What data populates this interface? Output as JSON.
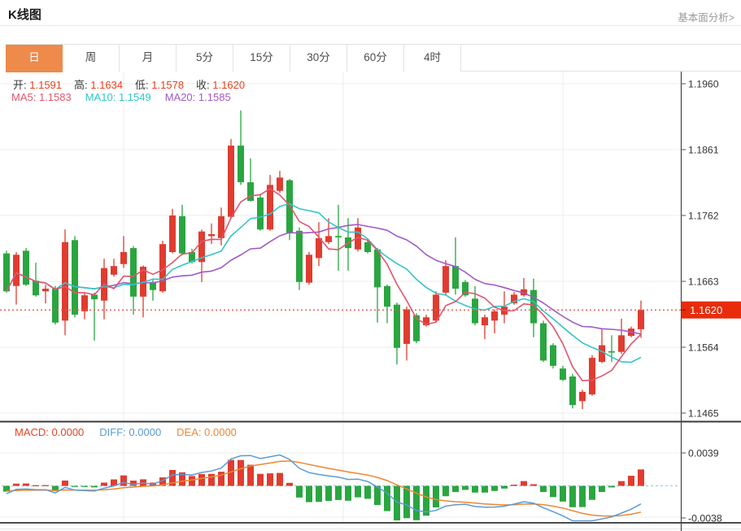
{
  "page": {
    "title": "K线图",
    "link": "基本面分析>"
  },
  "tabs": {
    "items": [
      {
        "label": "日",
        "active": true
      },
      {
        "label": "周",
        "active": false
      },
      {
        "label": "月",
        "active": false
      },
      {
        "label": "5分",
        "active": false
      },
      {
        "label": "15分",
        "active": false
      },
      {
        "label": "30分",
        "active": false
      },
      {
        "label": "60分",
        "active": false
      },
      {
        "label": "4时",
        "active": false
      }
    ]
  },
  "legend": {
    "ohlc": [
      {
        "label": "开:",
        "value": "1.1591"
      },
      {
        "label": "高:",
        "value": "1.1634"
      },
      {
        "label": "低:",
        "value": "1.1578"
      },
      {
        "label": "收:",
        "value": "1.1620"
      }
    ],
    "ma": [
      {
        "label": "MA5:",
        "value": "1.1583"
      },
      {
        "label": "MA10:",
        "value": "1.1549"
      },
      {
        "label": "MA20:",
        "value": "1.1585"
      }
    ]
  },
  "macd_header": [
    {
      "label": "MACD:",
      "value": "0.0000"
    },
    {
      "label": "DIFF:",
      "value": "0.0000"
    },
    {
      "label": "DEA:",
      "value": "0.0000"
    }
  ],
  "chart_data": {
    "type": "candlestick+macd",
    "price_axis": {
      "max": 1.196,
      "min": 1.1465,
      "ticks": [
        "1.1960",
        "1.1861",
        "1.1762",
        "1.1663",
        "1.1564",
        "1.1465"
      ]
    },
    "price_line": {
      "value": "1.1620",
      "price": 1.162
    },
    "macd_axis": {
      "max": 0.0039,
      "min": -0.0038,
      "ticks": [
        "0.0039",
        "-0.0038"
      ]
    },
    "ma_periods": [
      5,
      10,
      20
    ],
    "colors": {
      "up": "#e03c30",
      "down": "#2aa640",
      "ma5": "#e0556e",
      "ma10": "#33c4c8",
      "ma20": "#a259c4",
      "diff": "#5b9bd5",
      "dea": "#ee8633",
      "price_line": "#ee5540",
      "price_badge": "#e82c0c",
      "accent_tab": "#ee8a4a",
      "axis_text": "#333333",
      "grid": "#ececec"
    },
    "candles": [
      [
        1.1705,
        1.1709,
        1.1646,
        1.1648
      ],
      [
        1.1656,
        1.1707,
        1.1628,
        1.1703
      ],
      [
        1.1709,
        1.1713,
        1.1656,
        1.1658
      ],
      [
        1.1664,
        1.1691,
        1.164,
        1.1642
      ],
      [
        1.1648,
        1.1658,
        1.163,
        1.1652
      ],
      [
        1.1652,
        1.1656,
        1.1598,
        1.1601
      ],
      [
        1.1604,
        1.1741,
        1.1582,
        1.1722
      ],
      [
        1.1725,
        1.1731,
        1.1609,
        1.1613
      ],
      [
        1.1618,
        1.1646,
        1.1606,
        1.1642
      ],
      [
        1.1643,
        1.1646,
        1.1574,
        1.1636
      ],
      [
        1.1634,
        1.1697,
        1.1606,
        1.1683
      ],
      [
        1.1673,
        1.1697,
        1.167,
        1.1686
      ],
      [
        1.1689,
        1.1731,
        1.1683,
        1.1707
      ],
      [
        1.1713,
        1.1716,
        1.1613,
        1.164
      ],
      [
        1.164,
        1.1687,
        1.1609,
        1.1685
      ],
      [
        1.1662,
        1.1665,
        1.1634,
        1.165
      ],
      [
        1.1648,
        1.1724,
        1.1646,
        1.1719
      ],
      [
        1.1707,
        1.1772,
        1.1705,
        1.1762
      ],
      [
        1.1761,
        1.1778,
        1.1702,
        1.1705
      ],
      [
        1.1707,
        1.1712,
        1.169,
        1.1692
      ],
      [
        1.1692,
        1.1741,
        1.1662,
        1.1738
      ],
      [
        1.1731,
        1.175,
        1.1719,
        1.1734
      ],
      [
        1.1728,
        1.1774,
        1.1717,
        1.1761
      ],
      [
        1.176,
        1.1877,
        1.1757,
        1.1867
      ],
      [
        1.1867,
        1.192,
        1.1808,
        1.1812
      ],
      [
        1.1812,
        1.1848,
        1.1783,
        1.1784
      ],
      [
        1.1789,
        1.1793,
        1.1739,
        1.1741
      ],
      [
        1.1741,
        1.1823,
        1.1739,
        1.1808
      ],
      [
        1.1799,
        1.1829,
        1.1796,
        1.1819
      ],
      [
        1.1815,
        1.1817,
        1.1725,
        1.1735
      ],
      [
        1.1739,
        1.1744,
        1.165,
        1.1662
      ],
      [
        1.1661,
        1.1707,
        1.1658,
        1.1703
      ],
      [
        1.1698,
        1.1752,
        1.1686,
        1.1728
      ],
      [
        1.1722,
        1.1758,
        1.1719,
        1.1731
      ],
      [
        1.1731,
        1.1778,
        1.1679,
        1.1729
      ],
      [
        1.1729,
        1.1758,
        1.1679,
        1.1713
      ],
      [
        1.1711,
        1.1758,
        1.1708,
        1.1744
      ],
      [
        1.1722,
        1.1725,
        1.1705,
        1.1707
      ],
      [
        1.1711,
        1.1713,
        1.1601,
        1.1654
      ],
      [
        1.1656,
        1.1658,
        1.16,
        1.1625
      ],
      [
        1.1628,
        1.1631,
        1.1538,
        1.1563
      ],
      [
        1.1569,
        1.1625,
        1.1544,
        1.1621
      ],
      [
        1.1612,
        1.1615,
        1.157,
        1.1573
      ],
      [
        1.1597,
        1.1613,
        1.1595,
        1.1609
      ],
      [
        1.1604,
        1.1648,
        1.1601,
        1.1643
      ],
      [
        1.1646,
        1.1695,
        1.1643,
        1.1686
      ],
      [
        1.1686,
        1.1729,
        1.1643,
        1.1652
      ],
      [
        1.1662,
        1.1665,
        1.164,
        1.1642
      ],
      [
        1.1637,
        1.1656,
        1.1597,
        1.16
      ],
      [
        1.1597,
        1.1613,
        1.1576,
        1.1609
      ],
      [
        1.1604,
        1.1621,
        1.1585,
        1.1618
      ],
      [
        1.1613,
        1.1648,
        1.16,
        1.1625
      ],
      [
        1.163,
        1.1647,
        1.1628,
        1.1643
      ],
      [
        1.1642,
        1.1668,
        1.164,
        1.1651
      ],
      [
        1.165,
        1.1667,
        1.1579,
        1.16
      ],
      [
        1.16,
        1.1604,
        1.1542,
        1.1544
      ],
      [
        1.1567,
        1.157,
        1.1532,
        1.1536
      ],
      [
        1.1532,
        1.1536,
        1.1513,
        1.1515
      ],
      [
        1.152,
        1.1524,
        1.1472,
        1.1477
      ],
      [
        1.1483,
        1.15,
        1.1471,
        1.1497
      ],
      [
        1.1493,
        1.1552,
        1.1491,
        1.1548
      ],
      [
        1.1542,
        1.1591,
        1.154,
        1.1567
      ],
      [
        1.1558,
        1.1582,
        1.1542,
        1.1556
      ],
      [
        1.1557,
        1.1607,
        1.1554,
        1.1582
      ],
      [
        1.1581,
        1.1595,
        1.1579,
        1.1592
      ],
      [
        1.1591,
        1.1634,
        1.1578,
        1.162
      ]
    ]
  }
}
